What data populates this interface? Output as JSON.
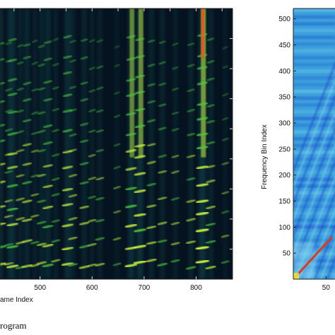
{
  "colors": {
    "spectrogram_background": "#05121f",
    "harmonic_high": "#c8f03c",
    "harmonic_mid": "#4ec83c",
    "harmonic_low": "#1d6e6e",
    "peak": "#ff4a1a",
    "similarity_background": "#3aa0dc",
    "similarity_light": "#8ad6f0",
    "similarity_dark": "#1a3cc8",
    "diagonal": "#e03a1a"
  },
  "chart_data": [
    {
      "type": "heatmap",
      "title": "",
      "subtitle": "",
      "xlabel": "ame Index",
      "ylabel": "",
      "xlim": [
        423,
        870
      ],
      "ylim": [
        0,
        1
      ],
      "grid": false,
      "x_ticks": [
        {
          "value": 500,
          "label": "500"
        },
        {
          "value": 600,
          "label": "600"
        },
        {
          "value": 700,
          "label": "700"
        },
        {
          "value": 800,
          "label": "800"
        }
      ],
      "caption": "rogram",
      "bursts": [
        {
          "x": 424,
          "strength": 0.7
        },
        {
          "x": 440,
          "strength": 0.5
        },
        {
          "x": 447,
          "strength": 0.8
        },
        {
          "x": 462,
          "strength": 0.5
        },
        {
          "x": 475,
          "strength": 0.65
        },
        {
          "x": 490,
          "strength": 0.45
        },
        {
          "x": 503,
          "strength": 0.55
        },
        {
          "x": 515,
          "strength": 0.7
        },
        {
          "x": 530,
          "strength": 0.45
        },
        {
          "x": 553,
          "strength": 0.8
        },
        {
          "x": 563,
          "strength": 0.5
        },
        {
          "x": 585,
          "strength": 0.6
        },
        {
          "x": 600,
          "strength": 0.45
        },
        {
          "x": 615,
          "strength": 0.5
        },
        {
          "x": 648,
          "strength": 0.35
        },
        {
          "x": 675,
          "strength": 0.85
        },
        {
          "x": 692,
          "strength": 0.9
        },
        {
          "x": 714,
          "strength": 0.6
        },
        {
          "x": 735,
          "strength": 0.55
        },
        {
          "x": 760,
          "strength": 0.45
        },
        {
          "x": 790,
          "strength": 0.55
        },
        {
          "x": 812,
          "strength": 1.0
        },
        {
          "x": 828,
          "strength": 0.6
        },
        {
          "x": 856,
          "strength": 0.35
        }
      ]
    },
    {
      "type": "heatmap",
      "title": "",
      "xlabel": "",
      "ylabel": "Frequency Bin Index",
      "xlim": [
        20,
        110
      ],
      "ylim": [
        0,
        520
      ],
      "grid": false,
      "y_ticks": [
        {
          "value": 50,
          "label": "50"
        },
        {
          "value": 100,
          "label": "100"
        },
        {
          "value": 150,
          "label": "150"
        },
        {
          "value": 200,
          "label": "200"
        },
        {
          "value": 250,
          "label": "250"
        },
        {
          "value": 300,
          "label": "300"
        },
        {
          "value": 350,
          "label": "350"
        },
        {
          "value": 400,
          "label": "400"
        },
        {
          "value": 450,
          "label": "450"
        },
        {
          "value": 500,
          "label": "500"
        }
      ],
      "x_ticks": [
        {
          "value": 50,
          "label": "50"
        }
      ]
    }
  ]
}
